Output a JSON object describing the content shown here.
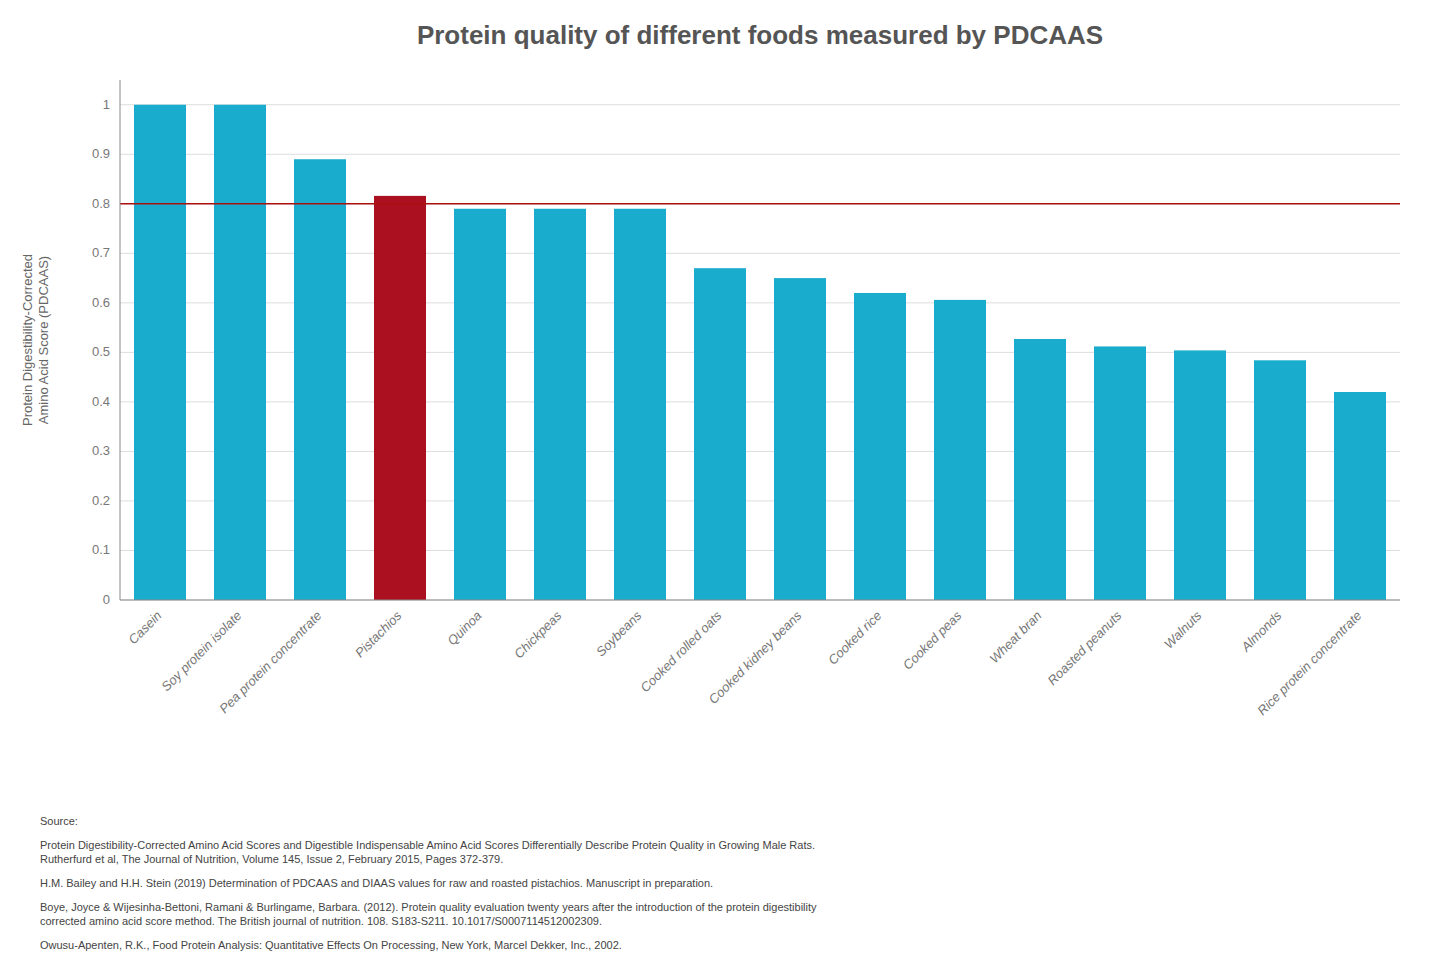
{
  "chart_data": {
    "type": "bar",
    "title": "Protein quality of different foods measured by PDCAAS",
    "ylabel": "Protein Digestibility-Corrected\nAmino Acid Score (PDCAAS)",
    "categories": [
      "Casein",
      "Soy protein isolate",
      "Pea protein concentrate",
      "Pistachios",
      "Quinoa",
      "Chickpeas",
      "Soybeans",
      "Cooked rolled oats",
      "Cooked kidney beans",
      "Cooked rice",
      "Cooked peas",
      "Wheat bran",
      "Roasted peanuts",
      "Walnuts",
      "Almonds",
      "Rice protein concentrate"
    ],
    "values": [
      1.0,
      1.0,
      0.89,
      0.816,
      0.79,
      0.79,
      0.79,
      0.67,
      0.65,
      0.62,
      0.606,
      0.527,
      0.512,
      0.504,
      0.484,
      0.42
    ],
    "colors": [
      "#1AACCC",
      "#1AACCC",
      "#1AACCC",
      "#AA1020",
      "#1AACCC",
      "#1AACCC",
      "#1AACCC",
      "#1AACCC",
      "#1AACCC",
      "#1AACCC",
      "#1AACCC",
      "#1AACCC",
      "#1AACCC",
      "#1AACCC",
      "#1AACCC",
      "#1AACCC"
    ],
    "reference_line": {
      "value": 0.8,
      "color": "#AA1010"
    },
    "ylim": [
      0,
      1.05
    ],
    "yticks": [
      0,
      0.1,
      0.2,
      0.3,
      0.4,
      0.5,
      0.6,
      0.7,
      0.8,
      0.9,
      1
    ],
    "grid": true,
    "source": [
      [
        "Source:"
      ],
      [
        "Protein Digestibility-Corrected Amino Acid Scores and Digestible Indispensable Amino Acid Scores Differentially Describe Protein Quality in Growing Male Rats.",
        "Rutherfurd et al, The Journal of Nutrition, Volume 145, Issue 2, February 2015, Pages 372-379."
      ],
      [
        "H.M. Bailey and H.H. Stein (2019) Determination of PDCAAS and DIAAS values for raw and roasted pistachios. Manuscript in preparation."
      ],
      [
        "Boye, Joyce & Wijesinha-Bettoni, Ramani & Burlingame, Barbara. (2012). Protein quality evaluation twenty years after the introduction of the protein digestibility",
        "corrected amino acid score method. The British journal of nutrition. 108. S183-S211. 10.1017/S0007114512002309."
      ],
      [
        "Owusu-Apenten, R.K., Food Protein Analysis: Quantitative Effects On Processing, New York, Marcel Dekker, Inc., 2002."
      ]
    ]
  }
}
